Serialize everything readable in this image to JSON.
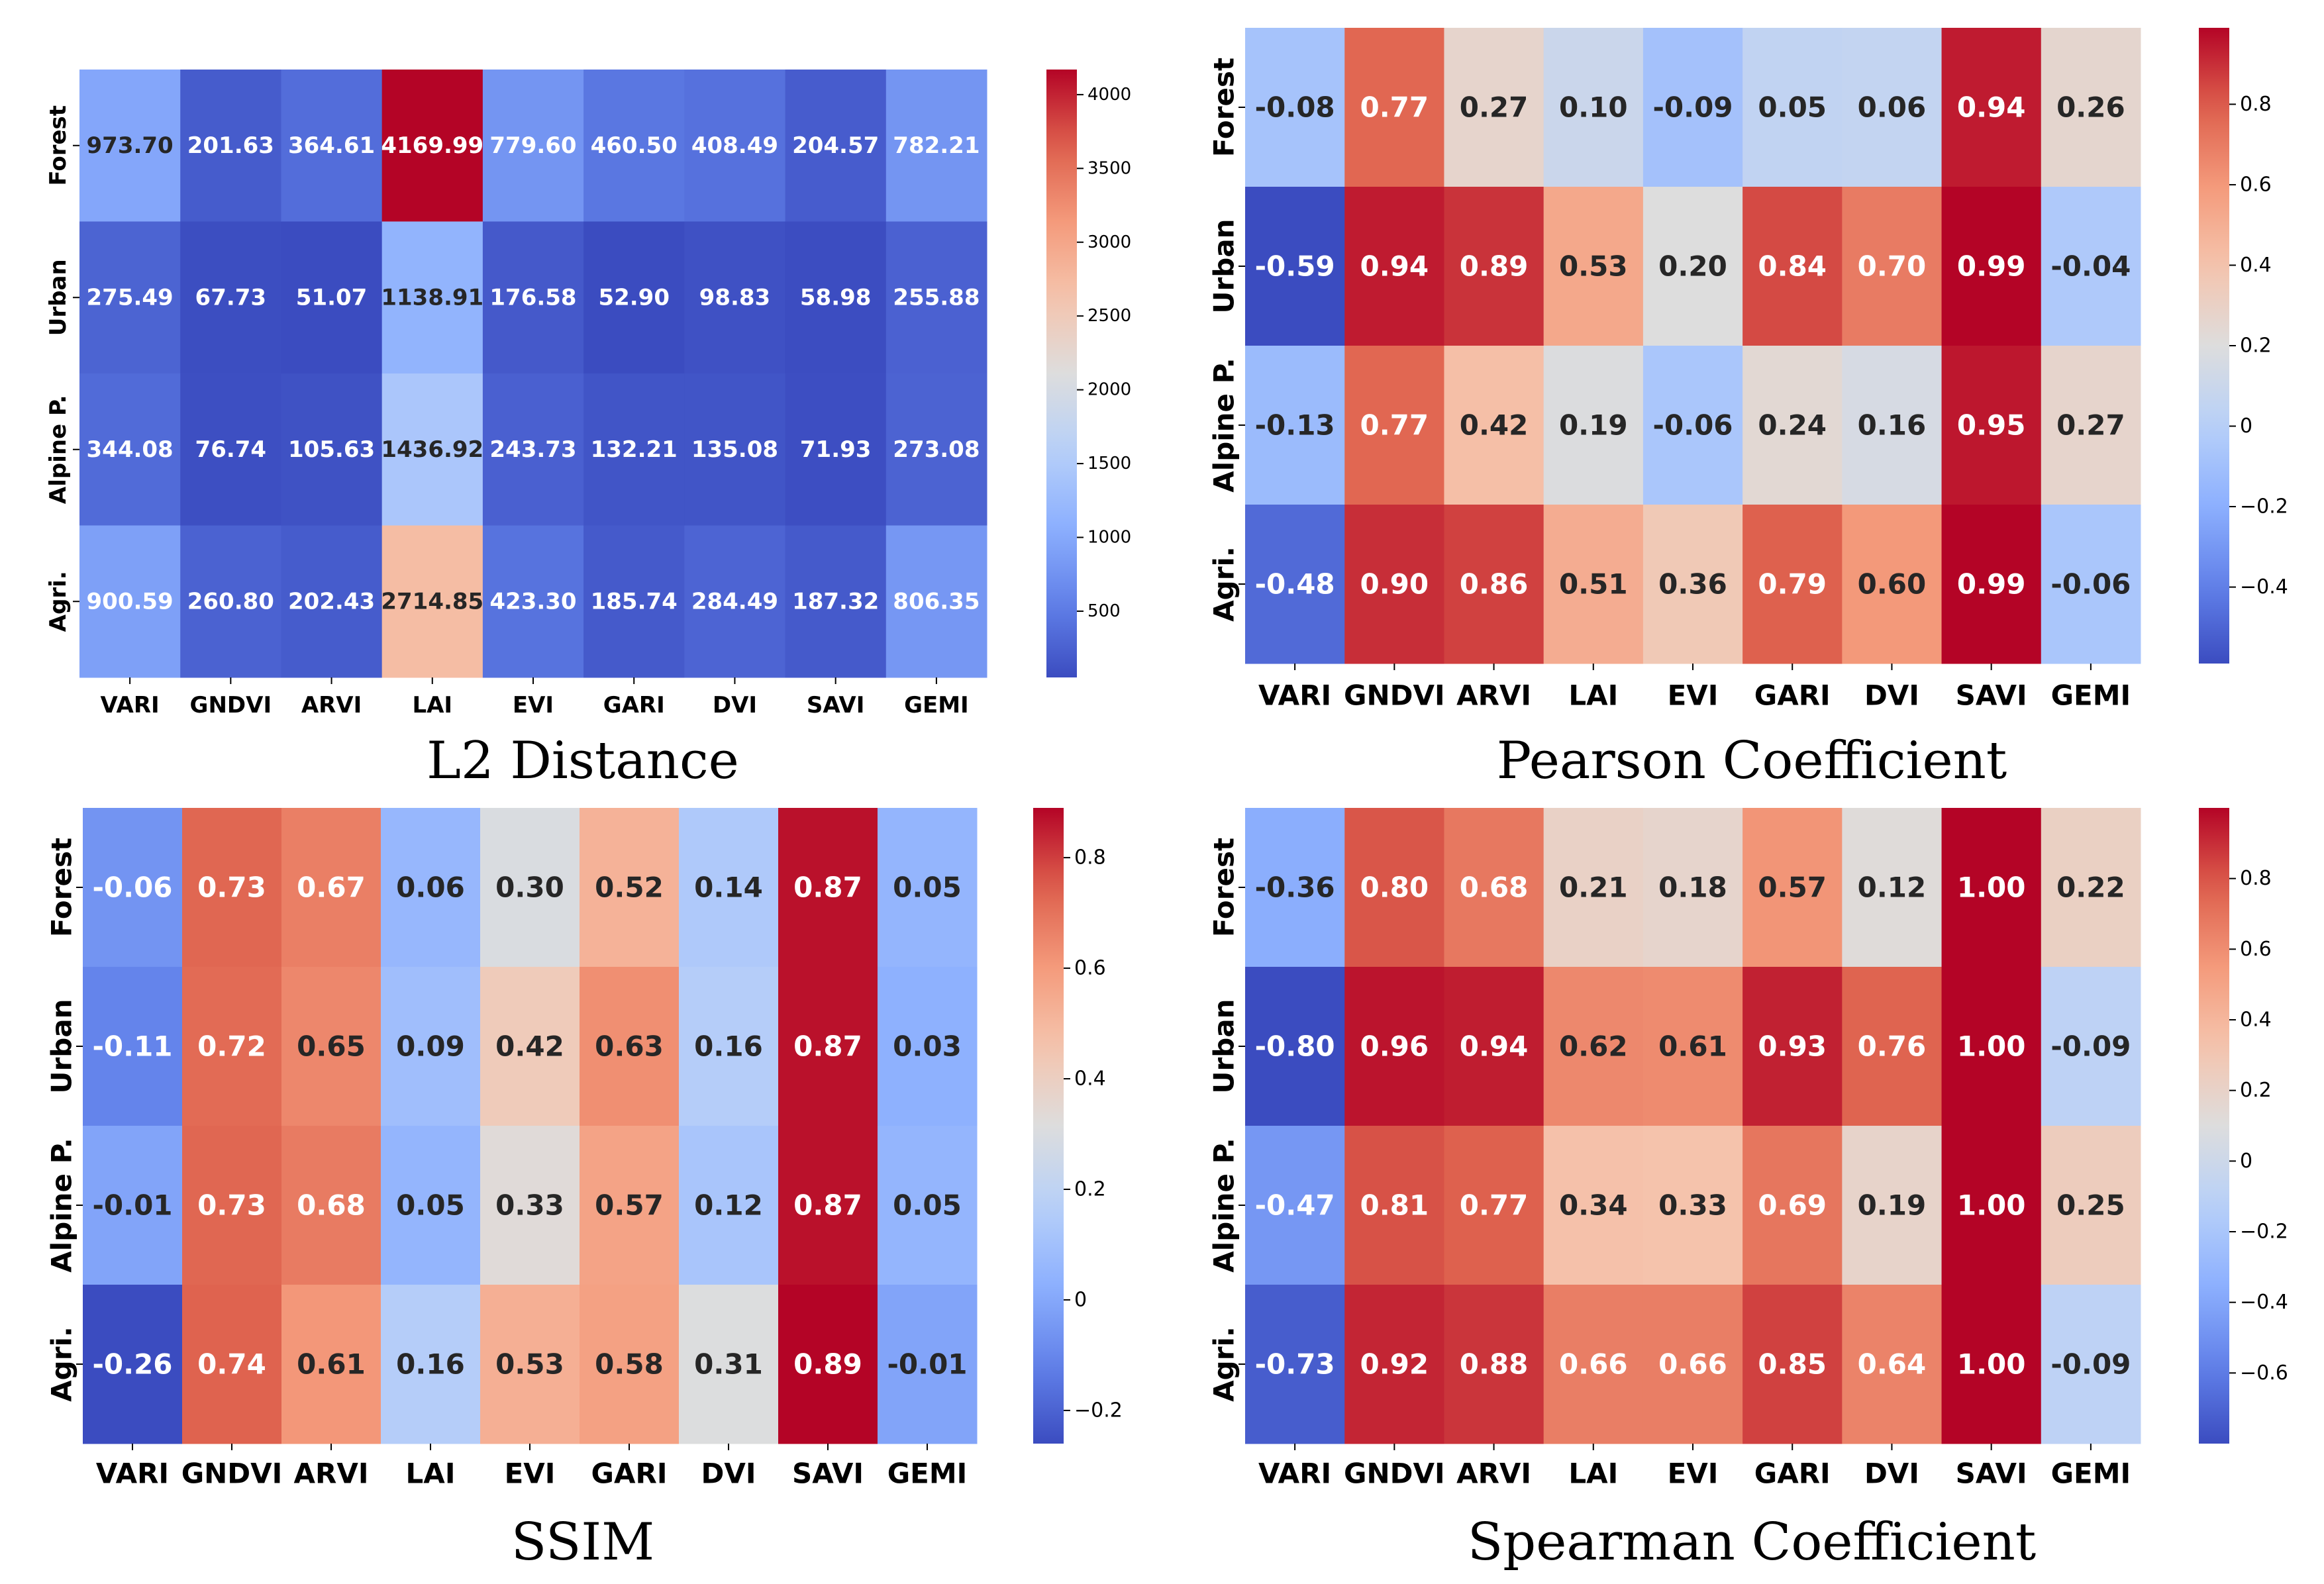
{
  "chart_data": [
    {
      "type": "heatmap",
      "title": "L2 Distance",
      "rows": [
        "Forest",
        "Urban",
        "Alpine P.",
        "Agri."
      ],
      "cols": [
        "VARI",
        "GNDVI",
        "ARVI",
        "LAI",
        "EVI",
        "GARI",
        "DVI",
        "SAVI",
        "GEMI"
      ],
      "values": [
        [
          973.7,
          201.63,
          364.61,
          4169.99,
          779.6,
          460.5,
          408.49,
          204.57,
          782.21
        ],
        [
          275.49,
          67.73,
          51.07,
          1138.91,
          176.58,
          52.9,
          98.83,
          58.98,
          255.88
        ],
        [
          344.08,
          76.74,
          105.63,
          1436.92,
          243.73,
          132.21,
          135.08,
          71.93,
          273.08
        ],
        [
          900.59,
          260.8,
          202.43,
          2714.85,
          423.3,
          185.74,
          284.49,
          187.32,
          806.35
        ]
      ],
      "vmin": 51.07,
      "vmax": 4169.99,
      "colorbar_ticks": [
        500,
        1000,
        1500,
        2000,
        2500,
        3000,
        3500,
        4000
      ],
      "colormap": "coolwarm"
    },
    {
      "type": "heatmap",
      "title": "Pearson Coefficient",
      "rows": [
        "Forest",
        "Urban",
        "Alpine P.",
        "Agri."
      ],
      "cols": [
        "VARI",
        "GNDVI",
        "ARVI",
        "LAI",
        "EVI",
        "GARI",
        "DVI",
        "SAVI",
        "GEMI"
      ],
      "values": [
        [
          -0.08,
          0.77,
          0.27,
          0.1,
          -0.09,
          0.05,
          0.06,
          0.94,
          0.26
        ],
        [
          -0.59,
          0.94,
          0.89,
          0.53,
          0.2,
          0.84,
          0.7,
          0.99,
          -0.04
        ],
        [
          -0.13,
          0.77,
          0.42,
          0.19,
          -0.06,
          0.24,
          0.16,
          0.95,
          0.27
        ],
        [
          -0.48,
          0.9,
          0.86,
          0.51,
          0.36,
          0.79,
          0.6,
          0.99,
          -0.06
        ]
      ],
      "vmin": -0.59,
      "vmax": 0.99,
      "colorbar_ticks": [
        -0.4,
        -0.2,
        0.0,
        0.2,
        0.4,
        0.6,
        0.8
      ],
      "colormap": "coolwarm"
    },
    {
      "type": "heatmap",
      "title": "SSIM",
      "rows": [
        "Forest",
        "Urban",
        "Alpine P.",
        "Agri."
      ],
      "cols": [
        "VARI",
        "GNDVI",
        "ARVI",
        "LAI",
        "EVI",
        "GARI",
        "DVI",
        "SAVI",
        "GEMI"
      ],
      "values": [
        [
          -0.06,
          0.73,
          0.67,
          0.06,
          0.3,
          0.52,
          0.14,
          0.87,
          0.05
        ],
        [
          -0.11,
          0.72,
          0.65,
          0.09,
          0.42,
          0.63,
          0.16,
          0.87,
          0.03
        ],
        [
          -0.01,
          0.73,
          0.68,
          0.05,
          0.33,
          0.57,
          0.12,
          0.87,
          0.05
        ],
        [
          -0.26,
          0.74,
          0.61,
          0.16,
          0.53,
          0.58,
          0.31,
          0.89,
          -0.01
        ]
      ],
      "vmin": -0.26,
      "vmax": 0.89,
      "colorbar_ticks": [
        -0.2,
        0.0,
        0.2,
        0.4,
        0.6,
        0.8
      ],
      "colormap": "coolwarm"
    },
    {
      "type": "heatmap",
      "title": "Spearman Coefficient",
      "rows": [
        "Forest",
        "Urban",
        "Alpine P.",
        "Agri."
      ],
      "cols": [
        "VARI",
        "GNDVI",
        "ARVI",
        "LAI",
        "EVI",
        "GARI",
        "DVI",
        "SAVI",
        "GEMI"
      ],
      "values": [
        [
          -0.36,
          0.8,
          0.68,
          0.21,
          0.18,
          0.57,
          0.12,
          1.0,
          0.22
        ],
        [
          -0.8,
          0.96,
          0.94,
          0.62,
          0.61,
          0.93,
          0.76,
          1.0,
          -0.09
        ],
        [
          -0.47,
          0.81,
          0.77,
          0.34,
          0.33,
          0.69,
          0.19,
          1.0,
          0.25
        ],
        [
          -0.73,
          0.92,
          0.88,
          0.66,
          0.66,
          0.85,
          0.64,
          1.0,
          -0.09
        ]
      ],
      "vmin": -0.8,
      "vmax": 1.0,
      "colorbar_ticks": [
        -0.6,
        -0.4,
        -0.2,
        0.0,
        0.2,
        0.4,
        0.6,
        0.8
      ],
      "colormap": "coolwarm"
    }
  ]
}
